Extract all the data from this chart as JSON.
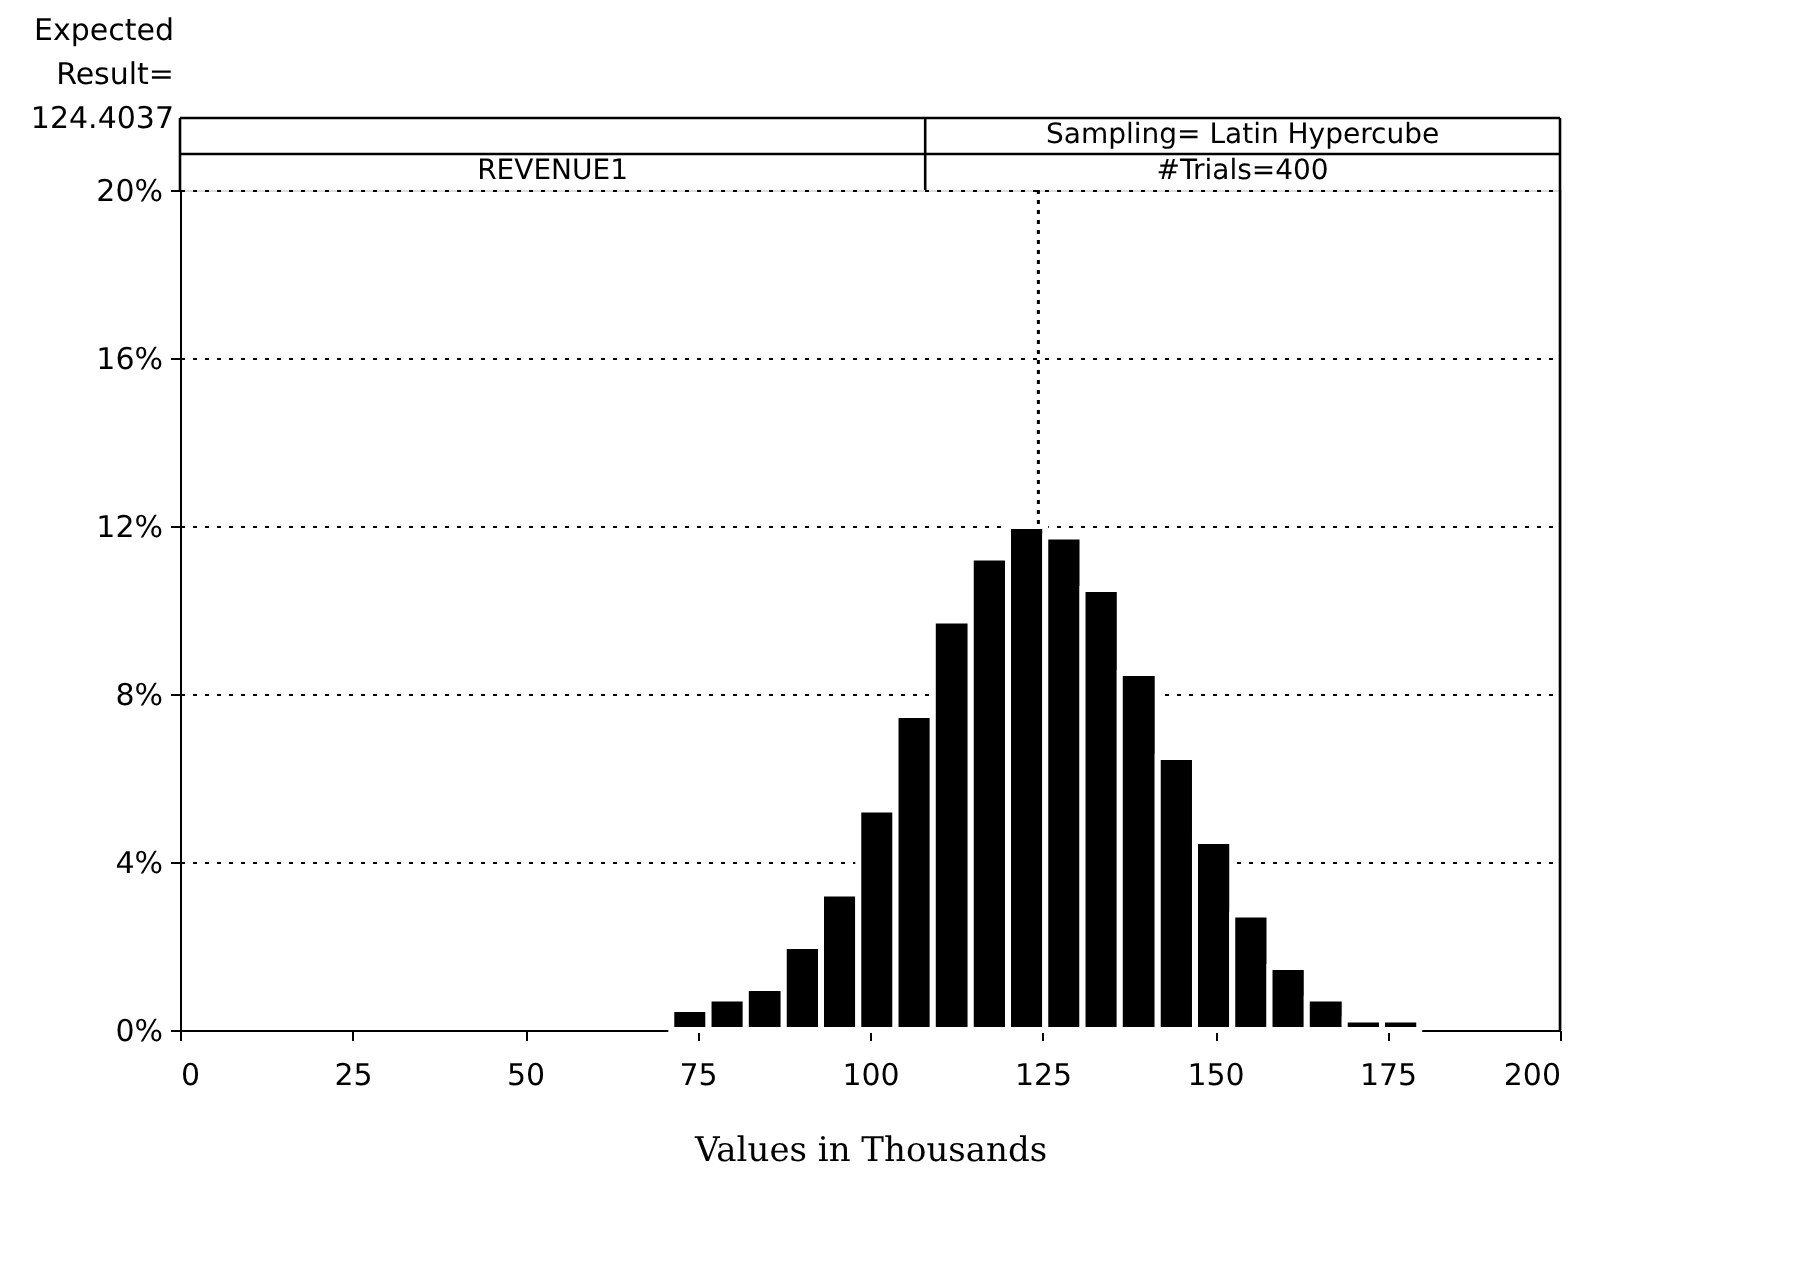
{
  "chart_data": {
    "type": "histogram",
    "title": "REVENUE1",
    "xlabel": "Values in Thousands",
    "bins": [
      71.2,
      76.6,
      82.0,
      87.5,
      92.9,
      98.3,
      103.7,
      109.1,
      114.6,
      120.0,
      125.4,
      130.8,
      136.2,
      141.7,
      147.1,
      152.5,
      157.9,
      163.3,
      168.8,
      174.2,
      179.6
    ],
    "values": [
      0.5,
      0.75,
      1.0,
      2.0,
      3.25,
      5.25,
      7.5,
      9.75,
      11.25,
      12.0,
      11.75,
      10.5,
      8.5,
      6.5,
      4.5,
      2.75,
      1.5,
      0.75,
      0.25,
      0.25
    ],
    "color": "#000000",
    "xlim": [
      0,
      200
    ],
    "xticks": [
      0,
      25,
      50,
      75,
      100,
      125,
      150,
      175,
      200
    ],
    "ylim": [
      0,
      20
    ],
    "yticks": [
      {
        "value": 0,
        "label": "0%"
      },
      {
        "value": 4,
        "label": "4%"
      },
      {
        "value": 8,
        "label": "8%"
      },
      {
        "value": 12,
        "label": "12%"
      },
      {
        "value": 16,
        "label": "16%"
      },
      {
        "value": 20,
        "label": "20%"
      }
    ],
    "grid": "y",
    "ref_lines": [
      {
        "axis": "x",
        "value": 124.4037,
        "label": "Expected Result= 124.4037",
        "line_style": "dotted"
      }
    ],
    "annotations": [
      "Sampling= Latin Hypercube",
      "#Trials=400"
    ]
  }
}
